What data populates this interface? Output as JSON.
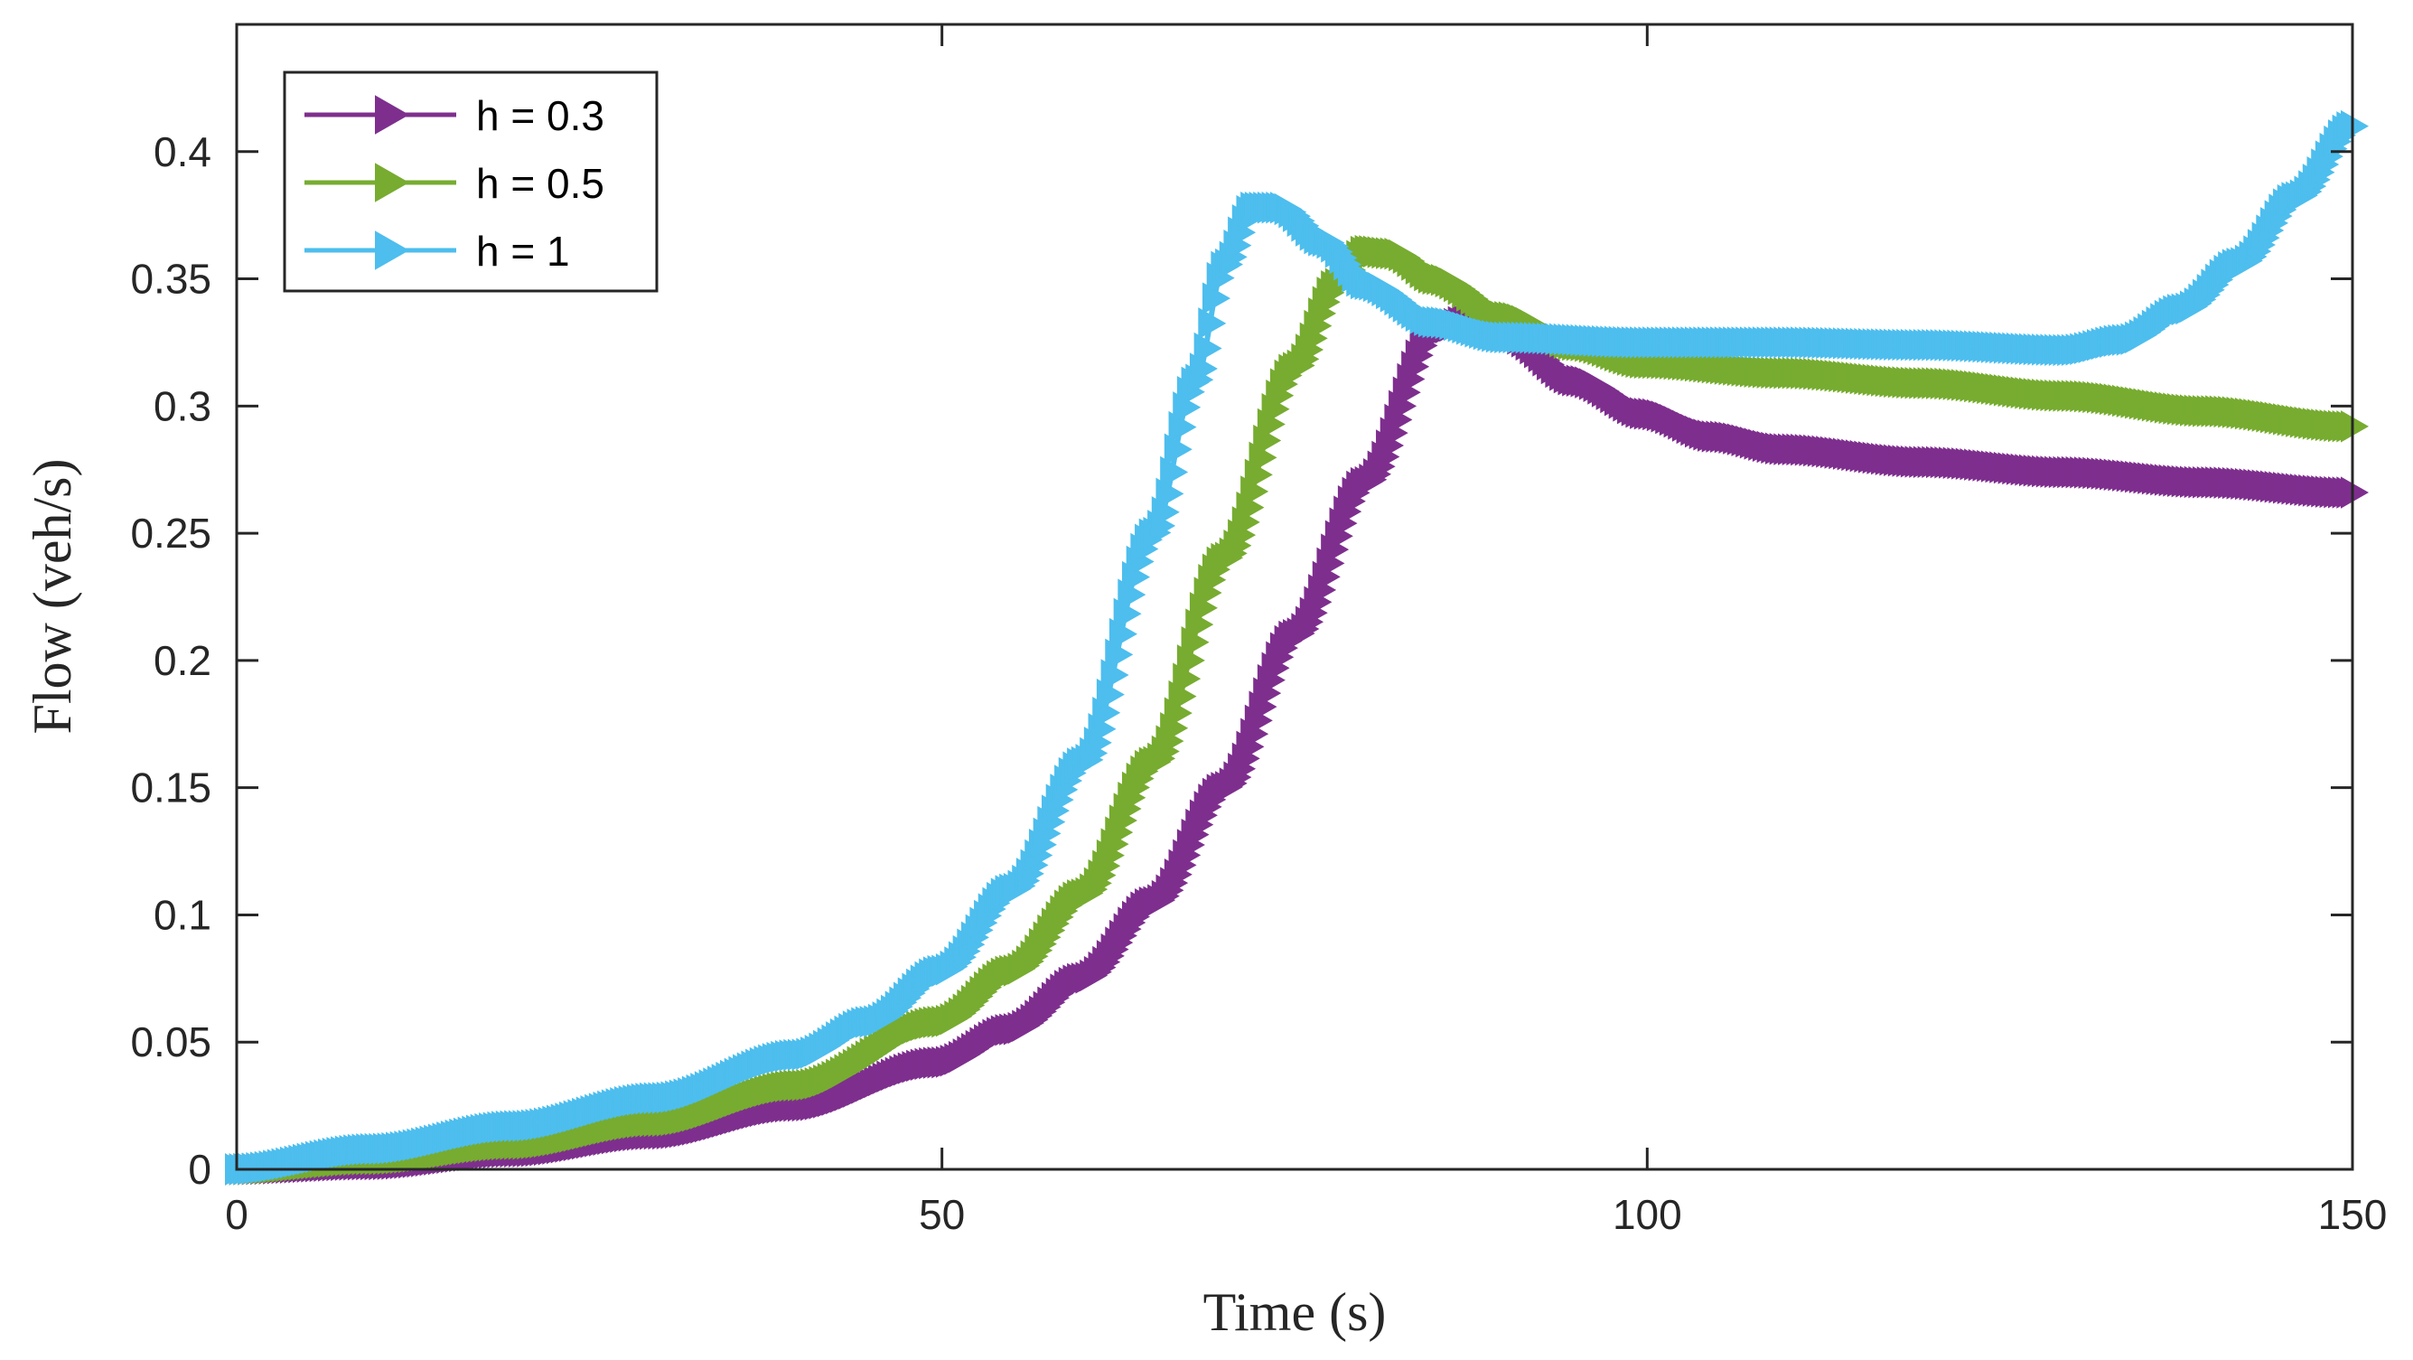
{
  "chart_data": {
    "type": "line",
    "title": "",
    "xlabel": "Time (s)",
    "ylabel": "Flow (veh/s)",
    "xlim": [
      0,
      150
    ],
    "ylim": [
      0,
      0.45
    ],
    "xticks": [
      0,
      50,
      100,
      150
    ],
    "xtick_labels": [
      "0",
      "50",
      "100",
      "150"
    ],
    "yticks": [
      0,
      0.05,
      0.1,
      0.15,
      0.2,
      0.25,
      0.3,
      0.35,
      0.4
    ],
    "ytick_labels": [
      "0",
      "0.05",
      "0.1",
      "0.15",
      "0.2",
      "0.25",
      "0.3",
      "0.35",
      "0.4"
    ],
    "grid": false,
    "legend_position": "top-left",
    "marker": "triangle-right",
    "series": [
      {
        "name": "h = 0.3",
        "color": "#7E2F8E",
        "points": [
          [
            0,
            0
          ],
          [
            10,
            0.002
          ],
          [
            20,
            0.007
          ],
          [
            30,
            0.014
          ],
          [
            40,
            0.025
          ],
          [
            50,
            0.042
          ],
          [
            55,
            0.055
          ],
          [
            60,
            0.075
          ],
          [
            65,
            0.105
          ],
          [
            70,
            0.15
          ],
          [
            75,
            0.21
          ],
          [
            80,
            0.27
          ],
          [
            85,
            0.33
          ],
          [
            88,
            0.335
          ],
          [
            90,
            0.328
          ],
          [
            95,
            0.31
          ],
          [
            100,
            0.297
          ],
          [
            105,
            0.288
          ],
          [
            110,
            0.283
          ],
          [
            120,
            0.278
          ],
          [
            130,
            0.274
          ],
          [
            140,
            0.27
          ],
          [
            150,
            0.266
          ]
        ]
      },
      {
        "name": "h = 0.5",
        "color": "#77AC30",
        "points": [
          [
            0,
            0
          ],
          [
            10,
            0.004
          ],
          [
            20,
            0.01
          ],
          [
            30,
            0.019
          ],
          [
            40,
            0.033
          ],
          [
            50,
            0.058
          ],
          [
            55,
            0.078
          ],
          [
            60,
            0.108
          ],
          [
            65,
            0.16
          ],
          [
            70,
            0.24
          ],
          [
            75,
            0.315
          ],
          [
            78,
            0.348
          ],
          [
            80,
            0.361
          ],
          [
            82,
            0.36
          ],
          [
            85,
            0.35
          ],
          [
            90,
            0.335
          ],
          [
            95,
            0.324
          ],
          [
            100,
            0.317
          ],
          [
            110,
            0.313
          ],
          [
            120,
            0.309
          ],
          [
            130,
            0.304
          ],
          [
            140,
            0.298
          ],
          [
            150,
            0.292
          ]
        ]
      },
      {
        "name": "h = 1",
        "color": "#4DBEEE",
        "points": [
          [
            0,
            0
          ],
          [
            10,
            0.008
          ],
          [
            20,
            0.017
          ],
          [
            30,
            0.028
          ],
          [
            40,
            0.045
          ],
          [
            45,
            0.058
          ],
          [
            50,
            0.078
          ],
          [
            55,
            0.11
          ],
          [
            60,
            0.16
          ],
          [
            65,
            0.25
          ],
          [
            68,
            0.31
          ],
          [
            70,
            0.355
          ],
          [
            72,
            0.378
          ],
          [
            74,
            0.378
          ],
          [
            77,
            0.365
          ],
          [
            80,
            0.348
          ],
          [
            85,
            0.333
          ],
          [
            90,
            0.327
          ],
          [
            100,
            0.325
          ],
          [
            110,
            0.325
          ],
          [
            120,
            0.324
          ],
          [
            130,
            0.322
          ],
          [
            134,
            0.326
          ],
          [
            138,
            0.338
          ],
          [
            142,
            0.356
          ],
          [
            146,
            0.382
          ],
          [
            150,
            0.41
          ]
        ]
      }
    ]
  }
}
